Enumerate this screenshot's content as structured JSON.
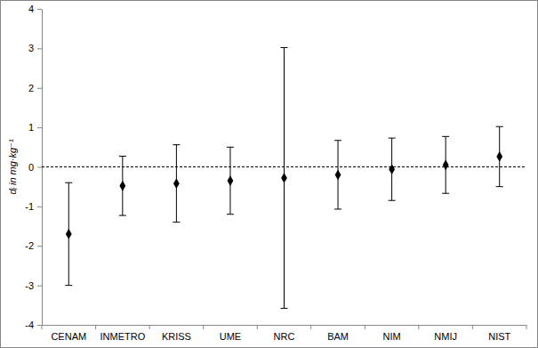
{
  "chart_data": {
    "type": "scatter",
    "y_label": "dᵢ in mg·kg⁻¹",
    "categories": [
      "CENAM",
      "INMETRO",
      "KRISS",
      "UME",
      "NRC",
      "BAM",
      "NIM",
      "NMIJ",
      "NIST"
    ],
    "values": [
      -1.7,
      -0.48,
      -0.42,
      -0.35,
      -0.28,
      -0.2,
      -0.06,
      0.05,
      0.26
    ],
    "errors": [
      1.3,
      0.75,
      0.98,
      0.85,
      3.3,
      0.87,
      0.79,
      0.72,
      0.76
    ],
    "color": "#000000",
    "marker": "diamond",
    "ylim": [
      -4,
      4
    ],
    "yticks": [
      -4,
      -3,
      -2,
      -1,
      0,
      1,
      2,
      3,
      4
    ],
    "reference_line": 0
  }
}
